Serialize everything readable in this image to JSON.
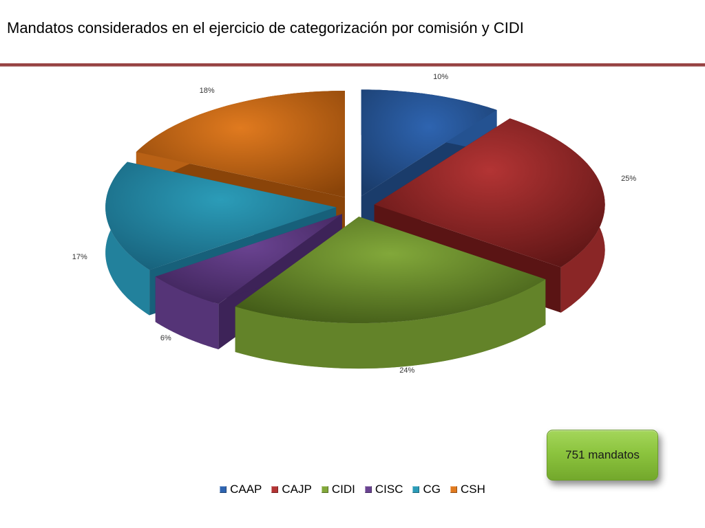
{
  "title": "Mandatos considerados en el ejercicio de categorización por comisión y CIDI",
  "badge": {
    "text": "751 mandatos"
  },
  "colors": {
    "title_rule": "#8c3232",
    "badge": "#8cc43e"
  },
  "chart_data": {
    "type": "pie",
    "style": "3d-exploded",
    "categories": [
      "CAAP",
      "CAJP",
      "CIDI",
      "CISC",
      "CG",
      "CSH"
    ],
    "values": [
      10,
      25,
      24,
      6,
      17,
      18
    ],
    "labels": [
      "10%",
      "25%",
      "24%",
      "6%",
      "17%",
      "18%"
    ],
    "unit": "%",
    "colors": [
      "#2e64b0",
      "#b33434",
      "#82a83a",
      "#6a4391",
      "#2b9cb8",
      "#e07a1f"
    ],
    "dark_colors": [
      "#1a3c6b",
      "#5a1414",
      "#3f5716",
      "#3d2358",
      "#17607a",
      "#8a4409"
    ],
    "legend": {
      "position": "bottom"
    }
  }
}
